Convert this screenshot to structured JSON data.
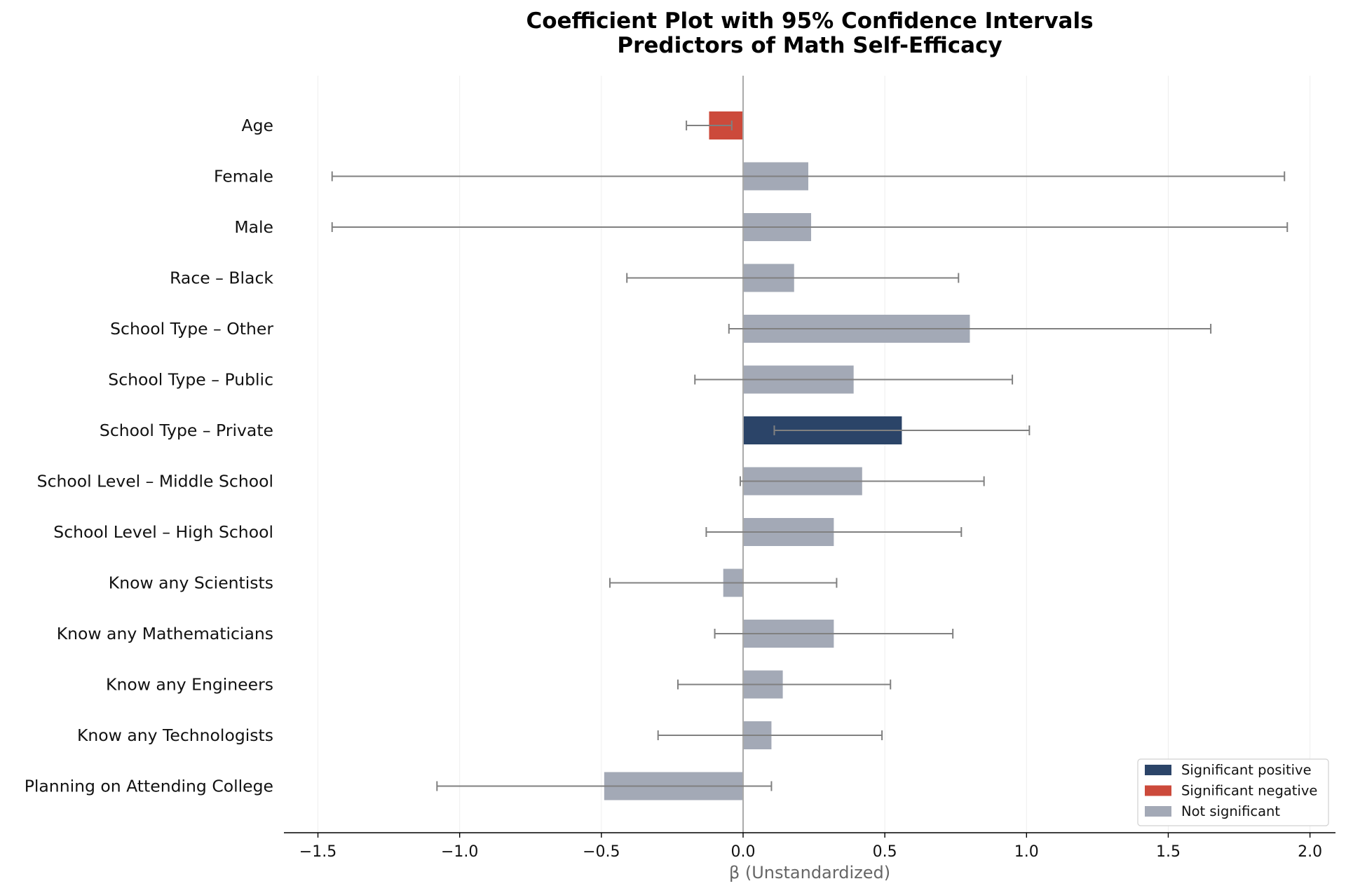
{
  "chart_data": {
    "type": "bar",
    "orientation": "horizontal",
    "title": [
      "Coefficient Plot with 95% Confidence Intervals",
      "Predictors of Math Self-Efficacy"
    ],
    "xlabel": "β (Unstandardized)",
    "ylabel": "",
    "xlim": [
      -1.62,
      2.09
    ],
    "xticks": [
      -1.5,
      -1.0,
      -0.5,
      0.0,
      0.5,
      1.0,
      1.5,
      2.0
    ],
    "xtick_labels": [
      "−1.5",
      "−1.0",
      "−0.5",
      "0.0",
      "0.5",
      "1.0",
      "1.5",
      "2.0"
    ],
    "grid": "vertical",
    "legend_position": "bottom-right",
    "categories": [
      "Age",
      "Female",
      "Male",
      "Race – Black",
      "School Type – Other",
      "School Type – Public",
      "School Type – Private",
      "School Level – Middle School",
      "School Level – High School",
      "Know any Scientists",
      "Know any Mathematicians",
      "Know any Engineers",
      "Know any Technologists",
      "Planning on Attending College"
    ],
    "values": [
      -0.12,
      0.23,
      0.24,
      0.18,
      0.8,
      0.39,
      0.56,
      0.42,
      0.32,
      -0.07,
      0.32,
      0.14,
      0.1,
      -0.49
    ],
    "ci_low": [
      -0.2,
      -1.45,
      -1.45,
      -0.41,
      -0.05,
      -0.17,
      0.11,
      -0.01,
      -0.13,
      -0.47,
      -0.1,
      -0.23,
      -0.3,
      -1.08
    ],
    "ci_high": [
      -0.04,
      1.91,
      1.92,
      0.76,
      1.65,
      0.95,
      1.01,
      0.85,
      0.77,
      0.33,
      0.74,
      0.52,
      0.49,
      0.1
    ],
    "significance": [
      "negative",
      "none",
      "none",
      "none",
      "none",
      "none",
      "positive",
      "none",
      "none",
      "none",
      "none",
      "none",
      "none",
      "none"
    ],
    "legend": [
      {
        "key": "positive",
        "label": "Significant positive",
        "color": "#2b4468"
      },
      {
        "key": "negative",
        "label": "Significant negative",
        "color": "#cc4a3b"
      },
      {
        "key": "none",
        "label": "Not significant",
        "color": "#a3a9b6"
      }
    ],
    "colors": {
      "positive": "#2b4468",
      "negative": "#cc4a3b",
      "none": "#a3a9b6",
      "errorbar": "#808080",
      "zero_line": "#aaaaaa",
      "grid": "#eeeeee"
    }
  }
}
